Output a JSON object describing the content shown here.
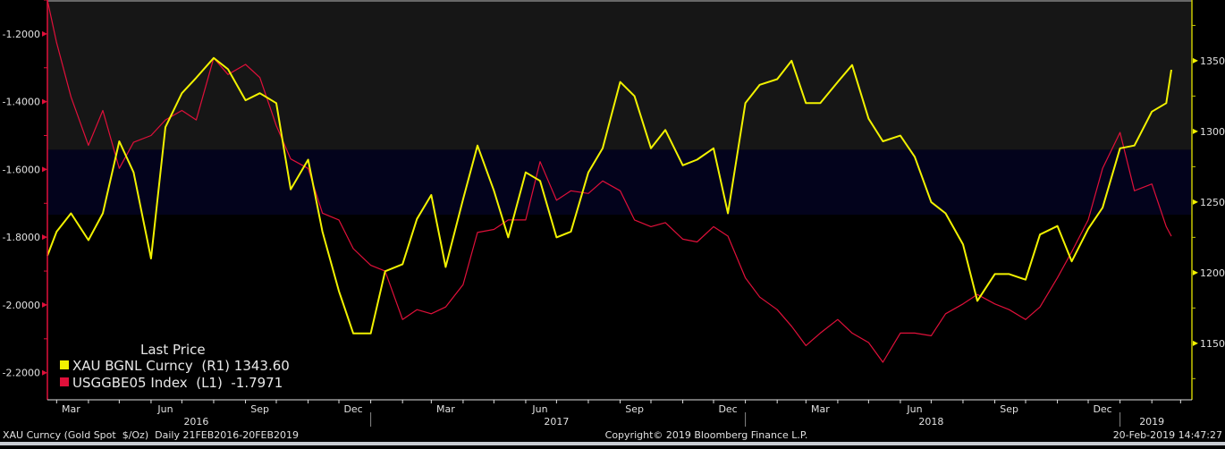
{
  "chart_data": {
    "type": "line",
    "title": "",
    "legend": {
      "heading": "Last Price",
      "placement": "bottom-left"
    },
    "x_range": [
      "2016-02-21",
      "2019-02-20"
    ],
    "x_ticks": [
      "Mar",
      "Jun",
      "Sep",
      "Dec",
      "Mar",
      "Jun",
      "Sep",
      "Dec",
      "Mar",
      "Jun",
      "Sep",
      "Dec"
    ],
    "x_tick_dates": [
      "2016-03-15",
      "2016-06-15",
      "2016-09-15",
      "2016-12-15",
      "2017-03-15",
      "2017-06-15",
      "2017-09-15",
      "2017-12-15",
      "2018-03-15",
      "2018-06-15",
      "2018-09-15",
      "2018-12-15"
    ],
    "years": [
      {
        "label": "2016",
        "center": "2016-07-15"
      },
      {
        "label": "2017",
        "center": "2017-07-01"
      },
      {
        "label": "2018",
        "center": "2018-07-01"
      },
      {
        "label": "2019",
        "center": "2019-02-01"
      }
    ],
    "year_boundaries": [
      "2017-01-01",
      "2018-01-01",
      "2019-01-01"
    ],
    "left_axis": {
      "range": [
        -2.28,
        -1.1
      ],
      "ticks": [
        -1.2,
        -1.4,
        -1.6,
        -1.8,
        -2.0,
        -2.2
      ],
      "tick_labels": [
        "-1.2000",
        "-1.4000",
        "-1.6000",
        "-1.8000",
        "-2.0000",
        "-2.2000"
      ],
      "color": "#e0103a"
    },
    "right_axis": {
      "range": [
        1110,
        1393
      ],
      "ticks": [
        1150,
        1200,
        1250,
        1300,
        1350
      ],
      "tick_labels": [
        "1150",
        "1200",
        "1250",
        "1300",
        "1350"
      ],
      "color": "#f2f200"
    },
    "bands": [
      {
        "axis": "right",
        "from": 1287,
        "to": 1393,
        "color": "#161616"
      },
      {
        "axis": "right",
        "from": 1241,
        "to": 1287,
        "color": "#03031c"
      }
    ],
    "grid": false,
    "dates": [
      "2016-02-21",
      "2016-03-01",
      "2016-03-15",
      "2016-04-01",
      "2016-04-15",
      "2016-05-01",
      "2016-05-15",
      "2016-06-01",
      "2016-06-15",
      "2016-07-01",
      "2016-07-15",
      "2016-08-01",
      "2016-08-15",
      "2016-09-01",
      "2016-09-15",
      "2016-10-01",
      "2016-10-15",
      "2016-11-01",
      "2016-11-15",
      "2016-12-01",
      "2016-12-15",
      "2017-01-01",
      "2017-01-15",
      "2017-02-01",
      "2017-02-15",
      "2017-03-01",
      "2017-03-15",
      "2017-04-01",
      "2017-04-15",
      "2017-05-01",
      "2017-05-15",
      "2017-06-01",
      "2017-06-15",
      "2017-07-01",
      "2017-07-15",
      "2017-08-01",
      "2017-08-15",
      "2017-09-01",
      "2017-09-15",
      "2017-10-01",
      "2017-10-15",
      "2017-11-01",
      "2017-11-15",
      "2017-12-01",
      "2017-12-15",
      "2018-01-01",
      "2018-01-15",
      "2018-02-01",
      "2018-02-15",
      "2018-03-01",
      "2018-03-15",
      "2018-04-01",
      "2018-04-15",
      "2018-05-01",
      "2018-05-15",
      "2018-06-01",
      "2018-06-15",
      "2018-07-01",
      "2018-07-15",
      "2018-08-01",
      "2018-08-15",
      "2018-09-01",
      "2018-09-15",
      "2018-10-01",
      "2018-10-15",
      "2018-11-01",
      "2018-11-15",
      "2018-12-01",
      "2018-12-15",
      "2019-01-01",
      "2019-01-15",
      "2019-02-01",
      "2019-02-15",
      "2019-02-20"
    ],
    "series": [
      {
        "name": "XAU BGNL Curncy",
        "axis_label": "(R1)",
        "last": "1343.60",
        "axis": "right",
        "color": "#f2f200",
        "values": [
          1212,
          1229,
          1242,
          1223,
          1242,
          1293,
          1271,
          1210,
          1303,
          1327,
          1338,
          1352,
          1344,
          1322,
          1327,
          1320,
          1259,
          1280,
          1229,
          1187,
          1157,
          1157,
          1201,
          1206,
          1238,
          1255,
          1204,
          1252,
          1290,
          1258,
          1225,
          1271,
          1265,
          1225,
          1229,
          1271,
          1288,
          1335,
          1325,
          1288,
          1301,
          1276,
          1280,
          1288,
          1242,
          1320,
          1333,
          1337,
          1350,
          1320,
          1320,
          1335,
          1347,
          1309,
          1293,
          1297,
          1282,
          1250,
          1242,
          1220,
          1180,
          1199,
          1199,
          1195,
          1227,
          1233,
          1208,
          1231,
          1246,
          1288,
          1290,
          1314,
          1320,
          1343.6
        ]
      },
      {
        "name": "USGGBE05 Index",
        "axis_label": "(L1)",
        "last": "-1.7971",
        "axis": "left",
        "color": "#e0103a",
        "values": [
          -1.1,
          -1.226,
          -1.386,
          -1.529,
          -1.426,
          -1.597,
          -1.52,
          -1.5,
          -1.454,
          -1.426,
          -1.454,
          -1.271,
          -1.32,
          -1.29,
          -1.329,
          -1.471,
          -1.569,
          -1.597,
          -1.729,
          -1.749,
          -1.834,
          -1.883,
          -1.9,
          -2.043,
          -2.014,
          -2.026,
          -2.006,
          -1.94,
          -1.786,
          -1.777,
          -1.749,
          -1.749,
          -1.577,
          -1.691,
          -1.663,
          -1.671,
          -1.634,
          -1.663,
          -1.749,
          -1.769,
          -1.757,
          -1.806,
          -1.814,
          -1.769,
          -1.797,
          -1.92,
          -1.977,
          -2.014,
          -2.063,
          -2.12,
          -2.083,
          -2.043,
          -2.083,
          -2.111,
          -2.169,
          -2.083,
          -2.083,
          -2.091,
          -2.026,
          -1.997,
          -1.969,
          -1.997,
          -2.014,
          -2.043,
          -2.006,
          -1.92,
          -1.843,
          -1.749,
          -1.597,
          -1.491,
          -1.663,
          -1.643,
          -1.769,
          -1.7971
        ]
      }
    ]
  },
  "footer": {
    "left": "XAU Curncy (Gold Spot  $/Oz)  Daily 21FEB2016-20FEB2019",
    "center": "Copyright© 2019 Bloomberg Finance L.P.",
    "right": "20-Feb-2019 14:47:27"
  }
}
